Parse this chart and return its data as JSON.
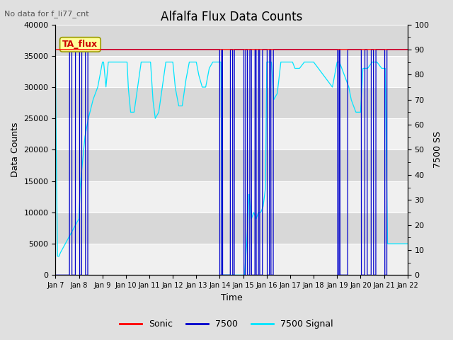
{
  "title": "Alfalfa Flux Data Counts",
  "annotation": "No data for f_li77_cnt",
  "xlabel": "Time",
  "ylabel_left": "Data Counts",
  "ylabel_right": "7500 SS",
  "ylim_left": [
    0,
    40000
  ],
  "ylim_right": [
    0,
    100
  ],
  "yticks_left": [
    0,
    5000,
    10000,
    15000,
    20000,
    25000,
    30000,
    35000,
    40000
  ],
  "yticks_right": [
    0,
    10,
    20,
    30,
    40,
    50,
    60,
    70,
    80,
    90,
    100
  ],
  "xtick_labels": [
    "Jan 7",
    "Jan 8",
    "Jan 9",
    "Jan 10",
    "Jan 11",
    "Jan 12",
    "Jan 13",
    "Jan 14",
    "Jan 15",
    "Jan 16",
    "Jan 17",
    "Jan 18",
    "Jan 19",
    "Jan 20",
    "Jan 21",
    "Jan 22"
  ],
  "fig_bg": "#e0e0e0",
  "plot_bg_light": "#f0f0f0",
  "plot_bg_dark": "#d8d8d8",
  "grid_color": "#ffffff",
  "sonic_color": "#ff0000",
  "flux7500_color": "#0000cc",
  "signal7500_color": "#00e5ff",
  "legend_box_facecolor": "#ffff99",
  "legend_box_edgecolor": "#999900",
  "legend_box_label": "TA_flux",
  "legend_box_textcolor": "#cc0000",
  "n_days": 15,
  "n_points": 3000,
  "max_count": 36000
}
